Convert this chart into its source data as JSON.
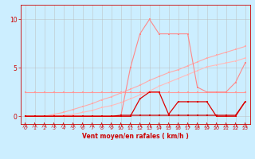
{
  "xlabel": "Vent moyen/en rafales ( km/h )",
  "xlim": [
    -0.5,
    23.5
  ],
  "ylim": [
    -0.8,
    11.5
  ],
  "yticks": [
    0,
    5,
    10
  ],
  "xticks": [
    0,
    1,
    2,
    3,
    4,
    5,
    6,
    7,
    8,
    9,
    10,
    11,
    12,
    13,
    14,
    15,
    16,
    17,
    18,
    19,
    20,
    21,
    22,
    23
  ],
  "background_color": "#cceeff",
  "grid_color": "#bbbbbb",
  "series": [
    {
      "y": [
        2.5,
        2.5,
        2.5,
        2.5,
        2.5,
        2.5,
        2.5,
        2.5,
        2.5,
        2.5,
        2.5,
        2.5,
        2.5,
        2.5,
        2.5,
        2.5,
        2.5,
        2.5,
        2.5,
        2.5,
        2.5,
        2.5,
        2.5,
        2.5
      ],
      "color": "#ff9999",
      "lw": 0.8,
      "ms": 1.8,
      "zorder": 3
    },
    {
      "y": [
        0,
        0,
        0,
        0.2,
        0.4,
        0.7,
        1.0,
        1.3,
        1.7,
        2.0,
        2.4,
        2.8,
        3.2,
        3.7,
        4.1,
        4.5,
        4.8,
        5.2,
        5.6,
        6.0,
        6.3,
        6.6,
        6.9,
        7.2
      ],
      "color": "#ffaaaa",
      "lw": 0.8,
      "ms": 1.8,
      "zorder": 3
    },
    {
      "y": [
        0,
        0,
        0,
        0,
        0.1,
        0.2,
        0.4,
        0.6,
        0.9,
        1.1,
        1.4,
        1.8,
        2.2,
        2.6,
        3.1,
        3.5,
        3.9,
        4.3,
        4.7,
        5.1,
        5.3,
        5.5,
        5.7,
        6.0
      ],
      "color": "#ffbbbb",
      "lw": 0.8,
      "ms": 1.8,
      "zorder": 3
    },
    {
      "y": [
        0,
        0,
        0,
        0,
        0,
        0,
        0,
        0,
        0,
        0,
        0,
        5.0,
        8.5,
        10.0,
        8.5,
        8.5,
        8.5,
        8.5,
        3.0,
        2.5,
        2.5,
        2.5,
        3.5,
        5.5
      ],
      "color": "#ff8888",
      "lw": 0.8,
      "ms": 1.8,
      "zorder": 4
    },
    {
      "y": [
        0,
        0,
        0,
        0,
        0,
        0,
        0,
        0,
        0,
        0,
        0.1,
        0.1,
        0.1,
        0.1,
        0.1,
        0.1,
        0.1,
        0.1,
        0.1,
        0.1,
        0.1,
        0.1,
        0.1,
        1.5
      ],
      "color": "#cc0000",
      "lw": 0.9,
      "ms": 2.0,
      "zorder": 5
    },
    {
      "y": [
        0,
        0,
        0,
        0,
        0,
        0,
        0,
        0,
        0,
        0,
        0,
        0,
        1.8,
        2.5,
        2.5,
        0.2,
        1.5,
        1.5,
        1.5,
        1.5,
        0,
        0,
        0,
        1.5
      ],
      "color": "#dd0000",
      "lw": 0.9,
      "ms": 2.0,
      "zorder": 6
    }
  ]
}
